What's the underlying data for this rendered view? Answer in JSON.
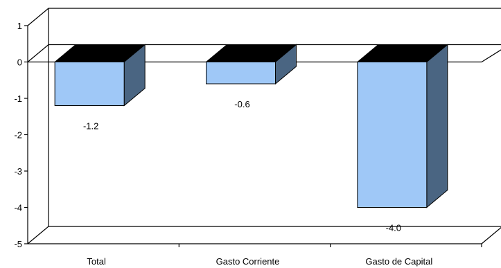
{
  "chart_data": {
    "type": "bar",
    "style": "3d",
    "categories": [
      "Total",
      "Gasto Corriente",
      "Gasto de Capital"
    ],
    "values": [
      -1.2,
      -0.6,
      -4.0
    ],
    "data_labels": [
      "-1.2",
      "-0.6",
      "-4.0"
    ],
    "yticks": [
      1,
      0,
      -1,
      -2,
      -3,
      -4,
      -5
    ],
    "ylim": [
      -5,
      1
    ],
    "title": "",
    "xlabel": "",
    "ylabel": "",
    "grid": false,
    "legend": "none",
    "colors": {
      "bar_front": "#9fc8f7",
      "bar_side": "#4a6582",
      "bar_top": "#000000",
      "axis": "#000000"
    }
  }
}
